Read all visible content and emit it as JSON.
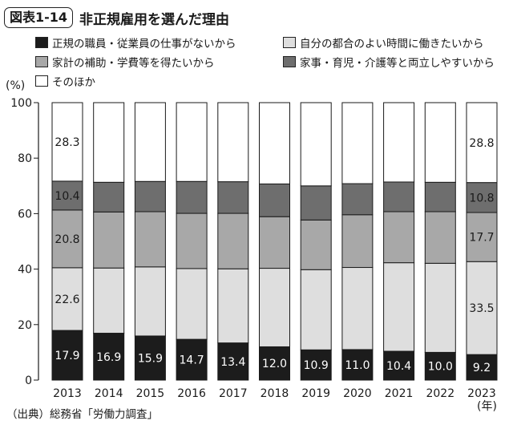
{
  "header": {
    "figure_number": "図表1-14",
    "title": "非正規雇用を選んだ理由"
  },
  "source": "（出典）総務省「労働力調査」",
  "colors": {
    "c1": "#1c1c1c",
    "c2": "#dedede",
    "c3": "#a8a8a8",
    "c4": "#6e6e6e",
    "c5": "#ffffff",
    "stroke": "#1a1a1a"
  },
  "chart_data": {
    "type": "bar",
    "stacked": true,
    "title": "非正規雇用を選んだ理由",
    "ylabel": "(%)",
    "xlabel": "(年)",
    "ylim": [
      0,
      100
    ],
    "yticks": [
      0,
      20,
      40,
      60,
      80,
      100
    ],
    "categories": [
      "2013",
      "2014",
      "2015",
      "2016",
      "2017",
      "2018",
      "2019",
      "2020",
      "2021",
      "2022",
      "2023"
    ],
    "series": [
      {
        "name": "正規の職員・従業員の仕事がないから",
        "values": [
          17.9,
          16.9,
          15.9,
          14.7,
          13.4,
          12.0,
          10.9,
          11.0,
          10.4,
          10.0,
          9.2
        ]
      },
      {
        "name": "自分の都合のよい時間に働きたいから",
        "values": [
          22.6,
          23.5,
          24.9,
          25.5,
          26.7,
          28.3,
          28.9,
          29.6,
          31.9,
          32.1,
          33.5
        ]
      },
      {
        "name": "家計の補助・学費等を得たいから",
        "values": [
          20.8,
          20.2,
          19.9,
          19.9,
          20.0,
          18.6,
          17.9,
          19.0,
          18.4,
          18.6,
          17.7
        ]
      },
      {
        "name": "家事・育児・介護等と両立しやすいから",
        "values": [
          10.4,
          10.7,
          10.9,
          11.5,
          11.4,
          11.8,
          12.3,
          11.2,
          10.7,
          10.6,
          10.8
        ]
      },
      {
        "name": "そのほか",
        "values": [
          28.3,
          28.7,
          28.4,
          28.4,
          28.5,
          29.3,
          30.0,
          29.2,
          28.6,
          28.7,
          28.8
        ]
      }
    ],
    "data_labels": {
      "2013": {
        "s1": "17.9",
        "s2": "22.6",
        "s3": "20.8",
        "s4": "10.4",
        "s5": "28.3"
      },
      "2014": {
        "s1": "16.9"
      },
      "2015": {
        "s1": "15.9"
      },
      "2016": {
        "s1": "14.7"
      },
      "2017": {
        "s1": "13.4"
      },
      "2018": {
        "s1": "12.0"
      },
      "2019": {
        "s1": "10.9"
      },
      "2020": {
        "s1": "11.0"
      },
      "2021": {
        "s1": "10.4"
      },
      "2022": {
        "s1": "10.0"
      },
      "2023": {
        "s1": "9.2",
        "s2": "33.5",
        "s3": "17.7",
        "s4": "10.8",
        "s5": "28.8"
      }
    },
    "legend": [
      "正規の職員・従業員の仕事がないから",
      "自分の都合のよい時間に働きたいから",
      "家計の補助・学費等を得たいから",
      "家事・育児・介護等と両立しやすいから",
      "そのほか"
    ]
  }
}
